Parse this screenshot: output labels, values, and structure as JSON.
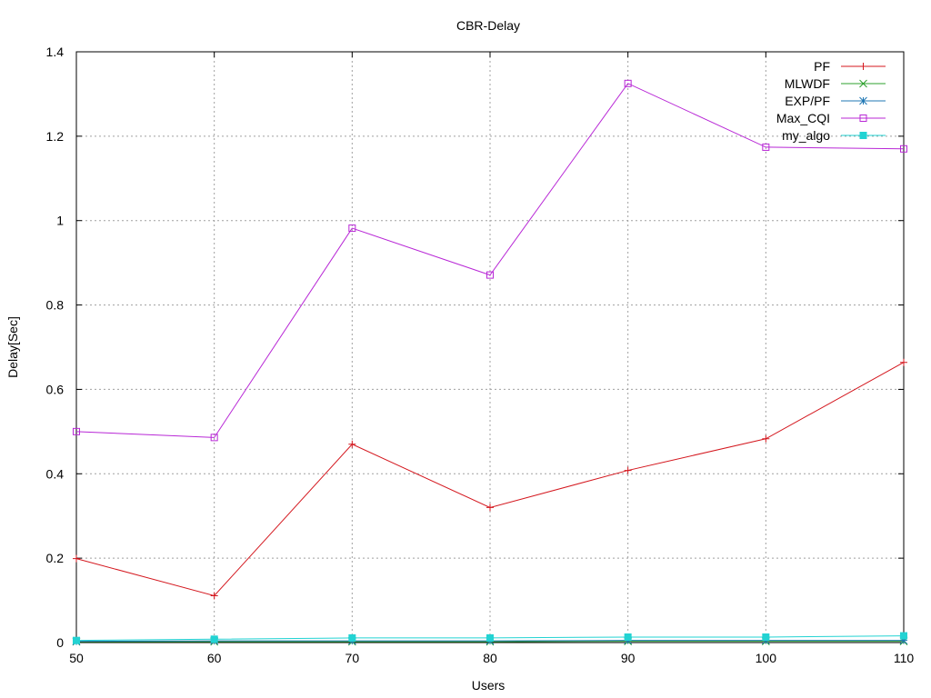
{
  "chart_data": {
    "type": "line",
    "title": "CBR-Delay",
    "xlabel": "Users",
    "ylabel": "Delay[Sec]",
    "x": [
      50,
      60,
      70,
      80,
      90,
      100,
      110
    ],
    "xlim": [
      50,
      110
    ],
    "ylim": [
      0,
      1.4
    ],
    "xticks": [
      "50",
      "60",
      "70",
      "80",
      "90",
      "100",
      "110"
    ],
    "yticks": [
      "0",
      "0.2",
      "0.4",
      "0.6",
      "0.8",
      "1",
      "1.2",
      "1.4"
    ],
    "xtick_values": [
      50,
      60,
      70,
      80,
      90,
      100,
      110
    ],
    "ytick_values": [
      0,
      0.2,
      0.4,
      0.6,
      0.8,
      1.0,
      1.2,
      1.4
    ],
    "grid": true,
    "legend_position": "top-right",
    "series": [
      {
        "name": "PF",
        "color": "#d4171e",
        "marker": "plus",
        "values": [
          0.199,
          0.111,
          0.47,
          0.32,
          0.408,
          0.483,
          0.664
        ]
      },
      {
        "name": "MLWDF",
        "color": "#2ca02c",
        "marker": "cross",
        "values": [
          0.002,
          0.002,
          0.002,
          0.002,
          0.003,
          0.003,
          0.003
        ]
      },
      {
        "name": "EXP/PF",
        "color": "#1f77b4",
        "marker": "asterisk",
        "values": [
          0.003,
          0.004,
          0.004,
          0.004,
          0.005,
          0.005,
          0.005
        ]
      },
      {
        "name": "Max_CQI",
        "color": "#b827d6",
        "marker": "open-square",
        "values": [
          0.5,
          0.486,
          0.982,
          0.871,
          1.325,
          1.174,
          1.17
        ]
      },
      {
        "name": "my_algo",
        "color": "#22d3d3",
        "marker": "filled-square",
        "values": [
          0.005,
          0.008,
          0.011,
          0.011,
          0.013,
          0.013,
          0.016
        ]
      }
    ]
  }
}
